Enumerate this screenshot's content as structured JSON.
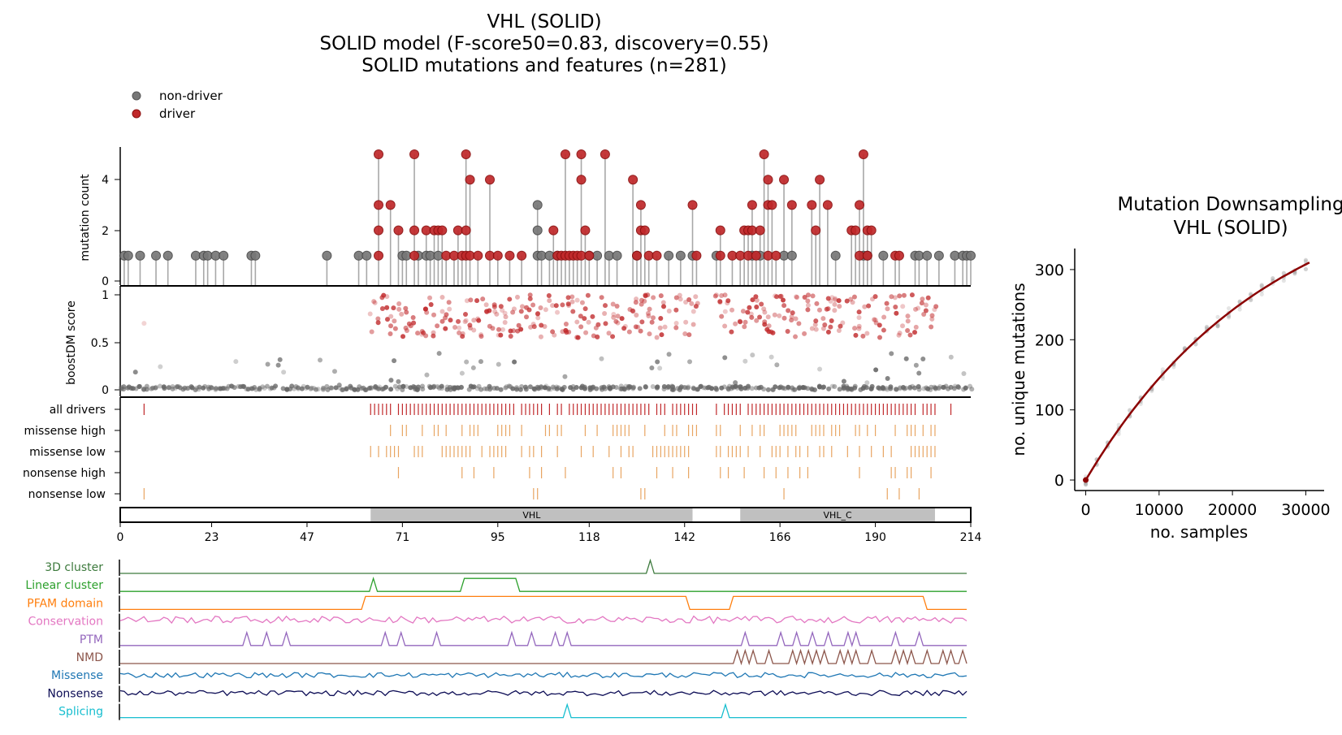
{
  "colors": {
    "driver": "#c0282a",
    "nondriver": "#666666",
    "feature_tick": "#e8a562",
    "domain_fill": "#c0c0c0",
    "curve": "#8b0000",
    "track_colors": [
      "#3d7a3d",
      "#2ca02c",
      "#ff7f0e",
      "#e377c2",
      "#9467bd",
      "#8c564b",
      "#1f77b4",
      "#0d0d56",
      "#17becf"
    ]
  },
  "chart_data": [
    {
      "type": "lollipop",
      "title_lines": [
        "VHL (SOLID)",
        "SOLID model (F-score50=0.83, discovery=0.55)",
        "SOLID mutations and features (n=281)"
      ],
      "legend": [
        "non-driver",
        "driver"
      ],
      "ylabel": "mutation count",
      "yticks": [
        "0",
        "2",
        "4"
      ],
      "ylim": [
        0,
        5.3
      ],
      "xlim": [
        0,
        214
      ],
      "xticks": [
        "0",
        "23",
        "47",
        "71",
        "95",
        "118",
        "142",
        "166",
        "190",
        "214"
      ],
      "nondriver_points": [
        [
          1,
          1
        ],
        [
          2,
          1
        ],
        [
          5,
          1
        ],
        [
          9,
          1
        ],
        [
          12,
          1
        ],
        [
          19,
          1
        ],
        [
          21,
          1
        ],
        [
          22,
          1
        ],
        [
          24,
          1
        ],
        [
          26,
          1
        ],
        [
          33,
          1
        ],
        [
          34,
          1
        ],
        [
          52,
          1
        ],
        [
          60,
          1
        ],
        [
          62,
          1
        ],
        [
          71,
          1
        ],
        [
          72,
          1
        ],
        [
          75,
          1
        ],
        [
          77,
          1
        ],
        [
          78,
          1
        ],
        [
          80,
          1
        ],
        [
          105,
          3
        ],
        [
          105,
          2
        ],
        [
          105,
          1
        ],
        [
          106,
          1
        ],
        [
          108,
          1
        ],
        [
          110,
          1
        ],
        [
          118,
          1
        ],
        [
          120,
          1
        ],
        [
          123,
          1
        ],
        [
          125,
          1
        ],
        [
          130,
          1
        ],
        [
          138,
          1
        ],
        [
          141,
          1
        ],
        [
          144,
          1
        ],
        [
          150,
          1
        ],
        [
          159,
          1
        ],
        [
          161,
          1
        ],
        [
          167,
          1
        ],
        [
          169,
          1
        ],
        [
          180,
          1
        ],
        [
          187,
          1
        ],
        [
          188,
          1
        ],
        [
          192,
          1
        ],
        [
          200,
          1
        ],
        [
          201,
          1
        ],
        [
          203,
          1
        ],
        [
          206,
          1
        ],
        [
          210,
          1
        ],
        [
          212,
          1
        ],
        [
          213,
          1
        ],
        [
          214,
          1
        ]
      ],
      "driver_points": [
        [
          65,
          5
        ],
        [
          65,
          3
        ],
        [
          65,
          2
        ],
        [
          65,
          1
        ],
        [
          68,
          3
        ],
        [
          70,
          2
        ],
        [
          74,
          2
        ],
        [
          74,
          1
        ],
        [
          74,
          5
        ],
        [
          77,
          2
        ],
        [
          79,
          2
        ],
        [
          80,
          2
        ],
        [
          81,
          2
        ],
        [
          82,
          1
        ],
        [
          84,
          1
        ],
        [
          85,
          2
        ],
        [
          86,
          1
        ],
        [
          87,
          5
        ],
        [
          87,
          2
        ],
        [
          87,
          1
        ],
        [
          88,
          4
        ],
        [
          88,
          1
        ],
        [
          90,
          1
        ],
        [
          93,
          4
        ],
        [
          93,
          1
        ],
        [
          95,
          1
        ],
        [
          98,
          1
        ],
        [
          101,
          1
        ],
        [
          109,
          2
        ],
        [
          110,
          1
        ],
        [
          111,
          1
        ],
        [
          112,
          5
        ],
        [
          112,
          1
        ],
        [
          113,
          1
        ],
        [
          114,
          1
        ],
        [
          115,
          1
        ],
        [
          116,
          5
        ],
        [
          116,
          4
        ],
        [
          116,
          1
        ],
        [
          117,
          2
        ],
        [
          118,
          1
        ],
        [
          122,
          5
        ],
        [
          129,
          4
        ],
        [
          130,
          1
        ],
        [
          131,
          3
        ],
        [
          131,
          2
        ],
        [
          132,
          2
        ],
        [
          133,
          1
        ],
        [
          135,
          1
        ],
        [
          144,
          3
        ],
        [
          145,
          1
        ],
        [
          151,
          2
        ],
        [
          151,
          1
        ],
        [
          154,
          1
        ],
        [
          156,
          1
        ],
        [
          157,
          2
        ],
        [
          158,
          2
        ],
        [
          158,
          1
        ],
        [
          159,
          2
        ],
        [
          159,
          3
        ],
        [
          160,
          1
        ],
        [
          161,
          2
        ],
        [
          162,
          5
        ],
        [
          163,
          3
        ],
        [
          163,
          4
        ],
        [
          163,
          1
        ],
        [
          164,
          3
        ],
        [
          165,
          1
        ],
        [
          167,
          4
        ],
        [
          169,
          3
        ],
        [
          174,
          3
        ],
        [
          175,
          2
        ],
        [
          176,
          4
        ],
        [
          178,
          3
        ],
        [
          184,
          2
        ],
        [
          185,
          2
        ],
        [
          186,
          3
        ],
        [
          186,
          1
        ],
        [
          187,
          5
        ],
        [
          188,
          2
        ],
        [
          188,
          1
        ],
        [
          189,
          2
        ],
        [
          195,
          1
        ],
        [
          196,
          1
        ]
      ],
      "score_ylabel": "boostDM score",
      "score_yticks": [
        "0",
        "0.5",
        "1"
      ],
      "feature_rows": [
        "all drivers",
        "missense high",
        "missense low",
        "nonsense high",
        "nonsense low"
      ],
      "domains": [
        {
          "name": "VHL",
          "start": 63,
          "end": 144
        },
        {
          "name": "VHL_C",
          "start": 156,
          "end": 205
        }
      ]
    },
    {
      "type": "track",
      "series": [
        {
          "name": "3D cluster",
          "segments": [
            [
              0,
              0.0
            ],
            [
              133,
              0.0
            ],
            [
              134,
              1.0
            ],
            [
              135,
              0.0
            ],
            [
              214,
              0.0
            ]
          ]
        },
        {
          "name": "Linear cluster",
          "segments": [
            [
              0,
              0.0
            ],
            [
              63,
              0.0
            ],
            [
              64,
              1.0
            ],
            [
              65,
              0.0
            ],
            [
              86,
              0.0
            ],
            [
              87,
              1.0
            ],
            [
              100,
              1.0
            ],
            [
              101,
              0.0
            ],
            [
              214,
              0.0
            ]
          ]
        },
        {
          "name": "PFAM domain",
          "segments": [
            [
              0,
              0.0
            ],
            [
              61,
              0.0
            ],
            [
              62,
              1.0
            ],
            [
              143,
              1.0
            ],
            [
              144,
              0.0
            ],
            [
              154,
              0.0
            ],
            [
              155,
              1.0
            ],
            [
              203,
              1.0
            ],
            [
              204,
              0.0
            ],
            [
              214,
              0.0
            ]
          ]
        },
        {
          "name": "Conservation",
          "type": "noise"
        },
        {
          "name": "PTM",
          "peaks": [
            32,
            37,
            42,
            67,
            71,
            80,
            99,
            104,
            110,
            113,
            158,
            167,
            171,
            175,
            179,
            184,
            186,
            196,
            202
          ]
        },
        {
          "name": "NMD",
          "peaks": [
            156,
            158,
            160,
            164,
            170,
            172,
            174,
            176,
            178,
            182,
            184,
            186,
            190,
            196,
            198,
            200,
            204,
            208,
            210,
            213
          ]
        },
        {
          "name": "Missense",
          "type": "noise"
        },
        {
          "name": "Nonsense",
          "type": "noise"
        },
        {
          "name": "Splicing",
          "peaks": [
            113,
            153
          ]
        }
      ]
    },
    {
      "type": "scatter",
      "title_lines": [
        "Mutation Downsampling",
        "VHL (SOLID)"
      ],
      "xlabel": "no. samples",
      "ylabel": "no. unique mutations",
      "xticks": [
        "0",
        "10000",
        "20000",
        "30000"
      ],
      "yticks": [
        "0",
        "100",
        "200",
        "300"
      ],
      "xlim": [
        -1500,
        32500
      ],
      "ylim": [
        -15,
        330
      ],
      "x_max": 30500,
      "y_max": 310
    }
  ]
}
